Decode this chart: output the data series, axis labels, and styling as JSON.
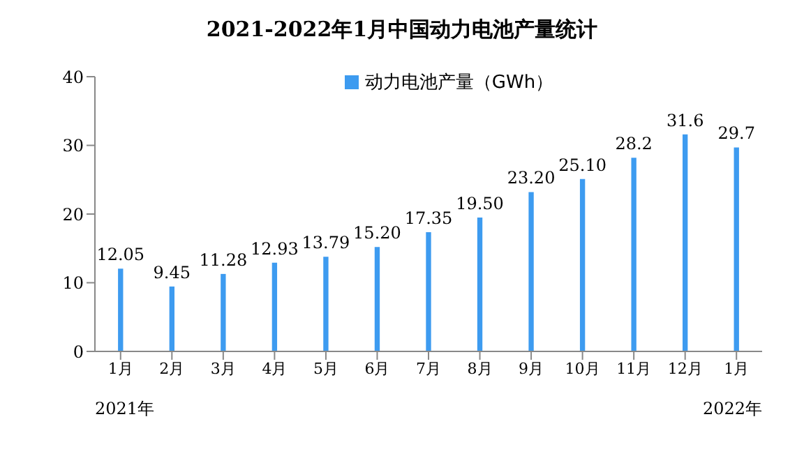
{
  "chart_data": {
    "type": "bar",
    "title": "2021-2022年1月中国动力电池产量统计",
    "categories": [
      "1月",
      "2月",
      "3月",
      "4月",
      "5月",
      "6月",
      "7月",
      "8月",
      "9月",
      "10月",
      "11月",
      "12月",
      "1月"
    ],
    "series": [
      {
        "name": "动力电池产量（GWh）",
        "color": "#3d9bf0",
        "values": [
          12.05,
          9.45,
          11.28,
          12.93,
          13.79,
          15.2,
          17.35,
          19.5,
          23.2,
          25.1,
          28.2,
          31.6,
          29.7
        ],
        "value_labels": [
          "12.05",
          "9.45",
          "11.28",
          "12.93",
          "13.79",
          "15.20",
          "17.35",
          "19.50",
          "23.20",
          "25.10",
          "28.2",
          "31.6",
          "29.7"
        ]
      }
    ],
    "ylim": [
      0,
      40
    ],
    "yticks": [
      0,
      10,
      20,
      30,
      40
    ],
    "legend": "top",
    "annotations": [
      "2021年",
      "2022年"
    ]
  }
}
